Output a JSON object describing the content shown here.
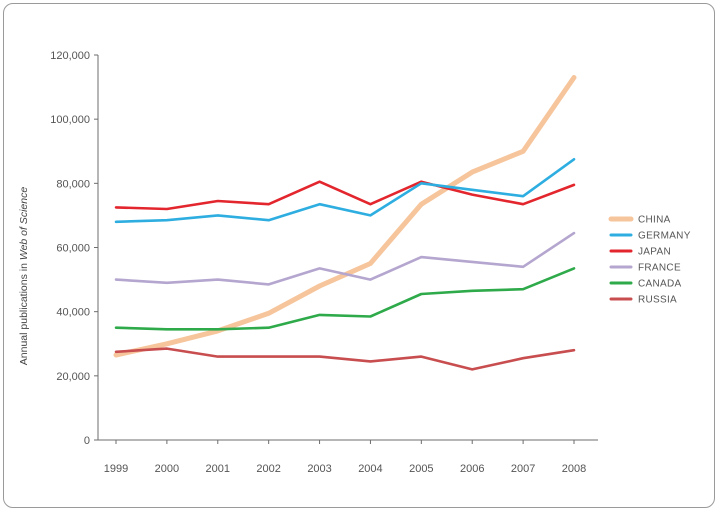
{
  "chart_data": {
    "type": "line",
    "title": "",
    "xlabel": "",
    "ylabel": {
      "prefix": "Annual publications in ",
      "emphasis": "Web of Science"
    },
    "x": [
      "1999",
      "2000",
      "2001",
      "2002",
      "2003",
      "2004",
      "2005",
      "2006",
      "2007",
      "2008"
    ],
    "ylim": [
      0,
      120000
    ],
    "yticks": [
      0,
      20000,
      40000,
      60000,
      80000,
      100000,
      120000
    ],
    "ytick_labels": [
      "0",
      "20,000",
      "40,000",
      "60,000",
      "80,000",
      "100,000",
      "120,000"
    ],
    "grid": false,
    "legend_position": "right",
    "series": [
      {
        "name": "CHINA",
        "color": "#f6c59b",
        "values": [
          26500,
          30000,
          34000,
          39500,
          48000,
          55000,
          73500,
          83500,
          90000,
          113000
        ]
      },
      {
        "name": "GERMANY",
        "color": "#2eaee0",
        "values": [
          68000,
          68500,
          70000,
          68500,
          73500,
          70000,
          80000,
          78000,
          76000,
          87500
        ]
      },
      {
        "name": "JAPAN",
        "color": "#e3262d",
        "values": [
          72500,
          72000,
          74500,
          73500,
          80500,
          73500,
          80500,
          76500,
          73500,
          79500
        ]
      },
      {
        "name": "FRANCE",
        "color": "#b4a6cf",
        "values": [
          50000,
          49000,
          50000,
          48500,
          53500,
          50000,
          57000,
          55500,
          54000,
          64500
        ]
      },
      {
        "name": "CANADA",
        "color": "#2eaa4a",
        "values": [
          35000,
          34500,
          34500,
          35000,
          39000,
          38500,
          45500,
          46500,
          47000,
          53500
        ]
      },
      {
        "name": "RUSSIA",
        "color": "#c84d4f",
        "values": [
          27500,
          28500,
          26000,
          26000,
          26000,
          24500,
          26000,
          22000,
          25500,
          28000
        ]
      }
    ]
  }
}
